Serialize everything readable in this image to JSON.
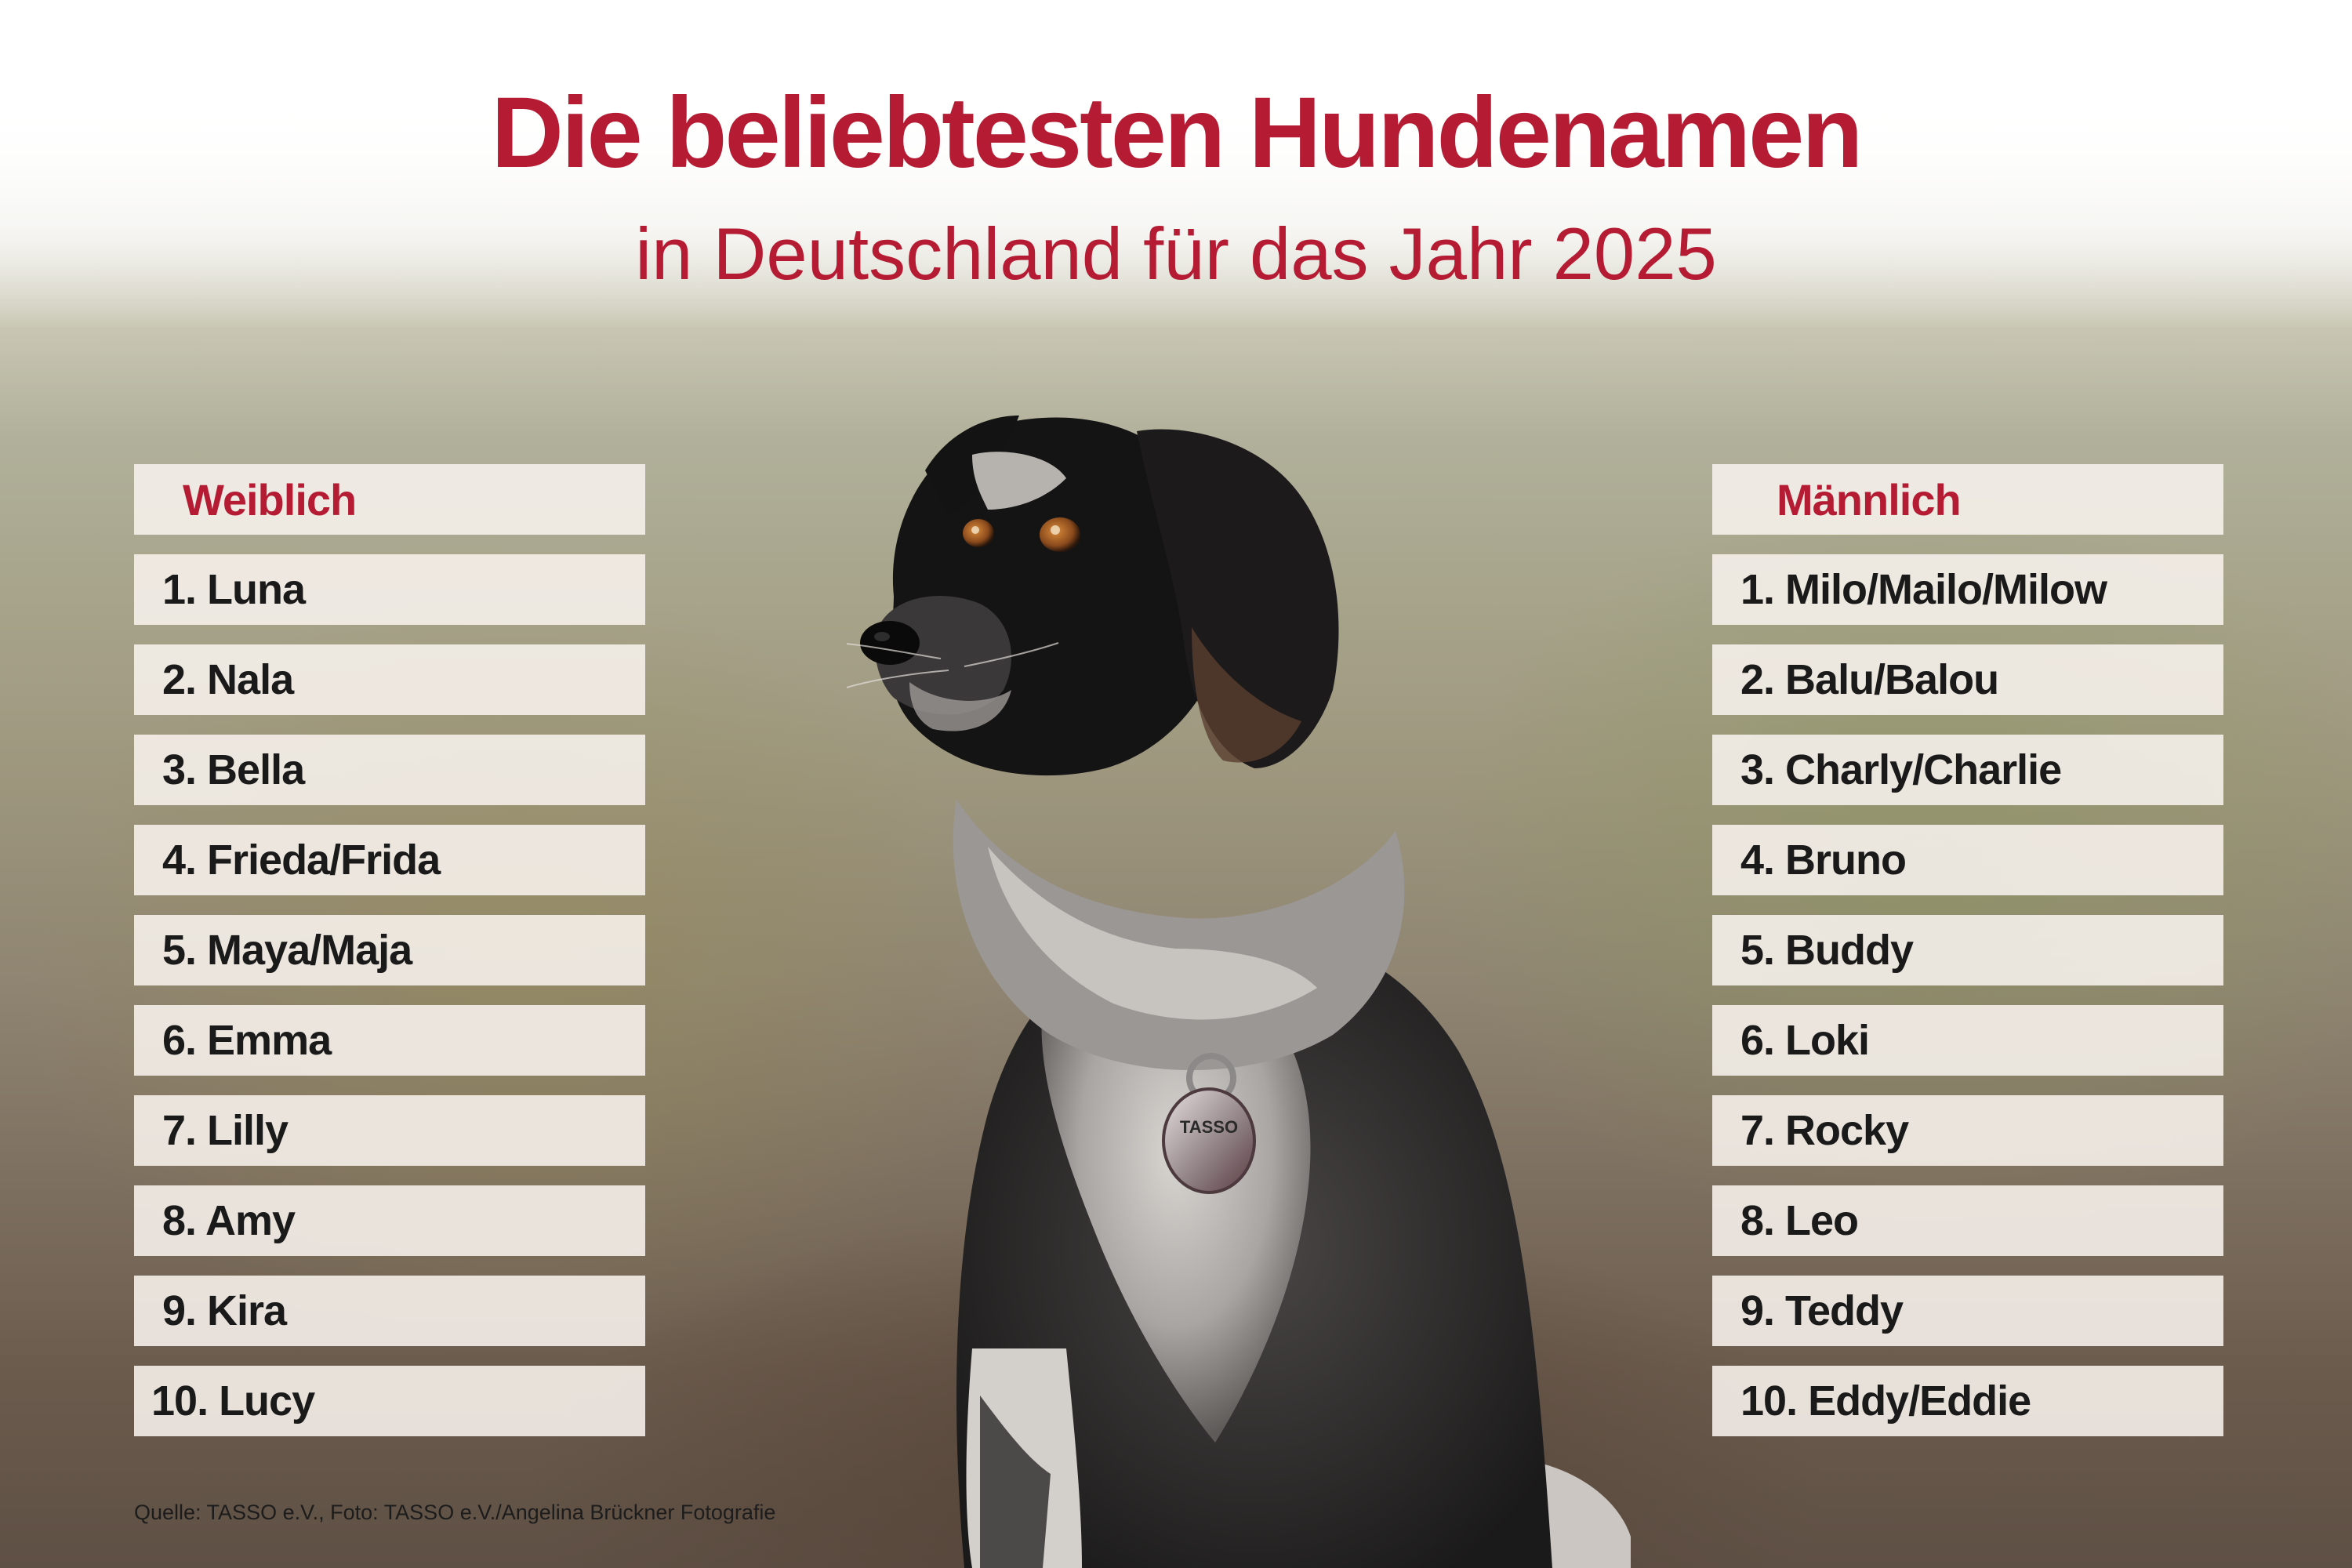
{
  "title": "Die beliebtesten Hundenamen",
  "subtitle": "in Deutschland für das Jahr 2025",
  "female": {
    "header": "Weiblich",
    "names": [
      "1. Luna",
      "2. Nala",
      "3. Bella",
      "4. Frieda/Frida",
      "5. Maya/Maja",
      "6. Emma",
      "7. Lilly",
      "8. Amy",
      "9. Kira",
      "10. Lucy"
    ]
  },
  "male": {
    "header": "Männlich",
    "names": [
      "1. Milo/Mailo/Milow",
      "2. Balu/Balou",
      "3. Charly/Charlie",
      "4. Bruno",
      "5. Buddy",
      "6. Loki",
      "7. Rocky",
      "8. Leo",
      "9. Teddy",
      "10. Eddy/Eddie"
    ]
  },
  "tag_text": "TASSO",
  "footer": "Quelle: TASSO e.V., Foto: TASSO e.V./Angelina Brückner Fotografie",
  "colors": {
    "accent": "#b51c34",
    "text": "#1a1a1a",
    "box": "#f5f0ea"
  },
  "photo_subject": "dog-photo"
}
